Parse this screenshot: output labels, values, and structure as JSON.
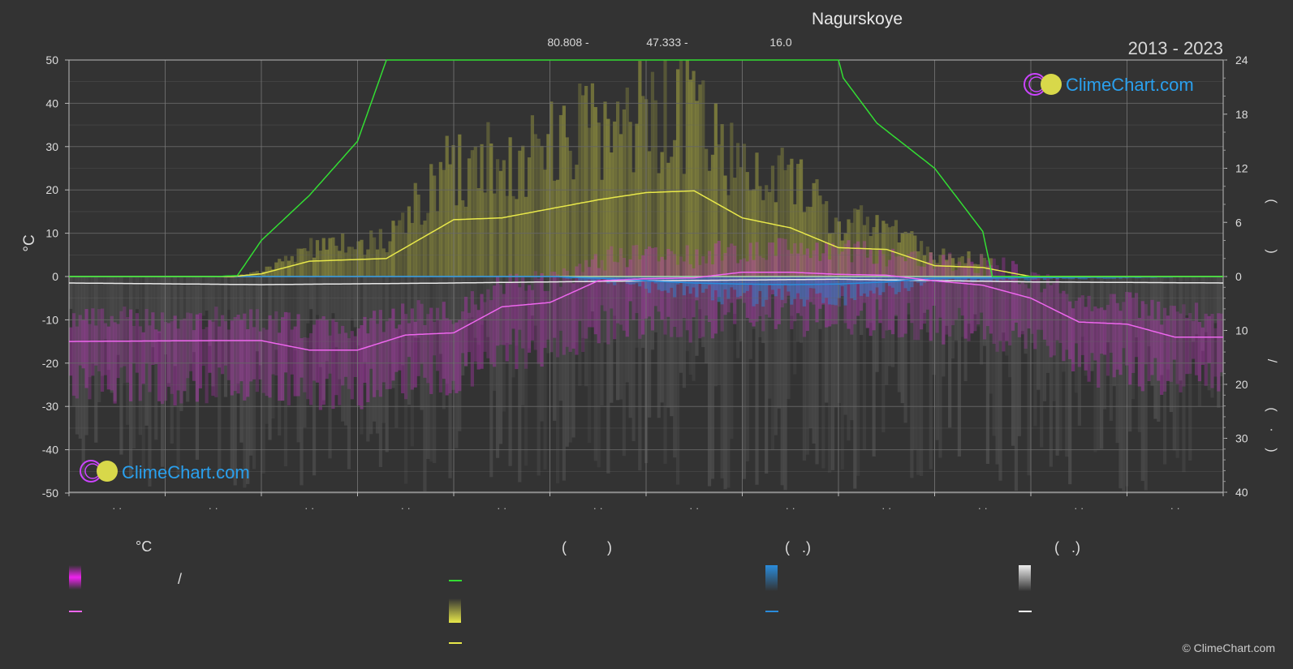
{
  "header": {
    "title": "Nagurskoye",
    "range": "2013 - 2023",
    "coords": [
      "80.808 -",
      "47.333 -",
      "16.0"
    ]
  },
  "logo": {
    "text": "ClimeChart.com"
  },
  "copyright": "© ClimeChart.com",
  "legend": {
    "temp_heading": "°C",
    "temp_slash": "/",
    "sun_heading": "(          )",
    "rain_heading": "(   .)",
    "snow_heading": "(   .)"
  },
  "colors": {
    "background": "#333333",
    "grid": "#5a5a5a",
    "daylight": "#33dd33",
    "sunshine": "#e8e84a",
    "temperature": "#ee66ee",
    "temperature_band": "#cc33cc",
    "rain": "#2a8cdc",
    "snow": "#e8e8e8"
  },
  "chart_data": {
    "type": "line",
    "title": "Nagurskoye",
    "subtitle": "2013 - 2023",
    "ylabel": "°C",
    "ylim": [
      -50,
      50
    ],
    "y_ticks": [
      50,
      40,
      30,
      20,
      10,
      0,
      -10,
      -20,
      -30,
      -40,
      -50
    ],
    "y2_ticks_top": [
      24,
      18,
      12,
      6,
      0
    ],
    "y2_ticks_bottom": [
      0,
      10,
      20,
      30,
      40
    ],
    "months": 12,
    "series": [
      {
        "key": "daylight",
        "unit": "hours",
        "x": [
          0,
          1.5,
          1.75,
          2,
          2.5,
          3,
          3.3,
          8,
          8.05,
          8.4,
          9,
          9.5,
          9.6,
          12
        ],
        "values": [
          0,
          0,
          0.1,
          4,
          9,
          15,
          24,
          24,
          22,
          17,
          12,
          5,
          0,
          0
        ]
      },
      {
        "key": "sunshine",
        "unit": "hours",
        "x": [
          0,
          1.7,
          2,
          2.5,
          3.3,
          4,
          4.5,
          5.5,
          6,
          6.5,
          7,
          7.5,
          8,
          8.5,
          9,
          9.5,
          10,
          12
        ],
        "values": [
          0,
          0,
          0.3,
          1.7,
          2,
          6.3,
          6.5,
          8.5,
          9.3,
          9.5,
          6.5,
          5.4,
          3.2,
          3,
          1.2,
          1,
          0,
          0
        ]
      },
      {
        "key": "temp_mean",
        "unit": "°C",
        "x": [
          0,
          1.5,
          2,
          2.5,
          3,
          3.5,
          4,
          4.5,
          5,
          5.5,
          6,
          6.5,
          7,
          7.5,
          8,
          8.5,
          9,
          9.5,
          10,
          10.5,
          11,
          11.5,
          12
        ],
        "values": [
          -15,
          -14.8,
          -14.8,
          -17,
          -17,
          -13.5,
          -13,
          -7,
          -6,
          -1,
          -0.5,
          -0.3,
          1,
          1,
          0.5,
          0.3,
          -1,
          -2,
          -5,
          -10.5,
          -11,
          -14,
          -14
        ]
      },
      {
        "key": "rain_mean",
        "unit": "mm",
        "x": [
          0,
          5,
          5.5,
          6,
          6.5,
          7,
          7.5,
          8,
          8.5,
          9,
          12
        ],
        "values": [
          0,
          0,
          0.3,
          0.8,
          1.2,
          1.4,
          1.5,
          1.4,
          1,
          0.3,
          0
        ]
      },
      {
        "key": "snow_mean",
        "unit": "mm",
        "x": [
          0,
          2,
          4,
          6,
          8,
          10,
          12
        ],
        "values": [
          1.2,
          1.5,
          1.2,
          0.8,
          0.5,
          1,
          1.2
        ]
      }
    ]
  }
}
